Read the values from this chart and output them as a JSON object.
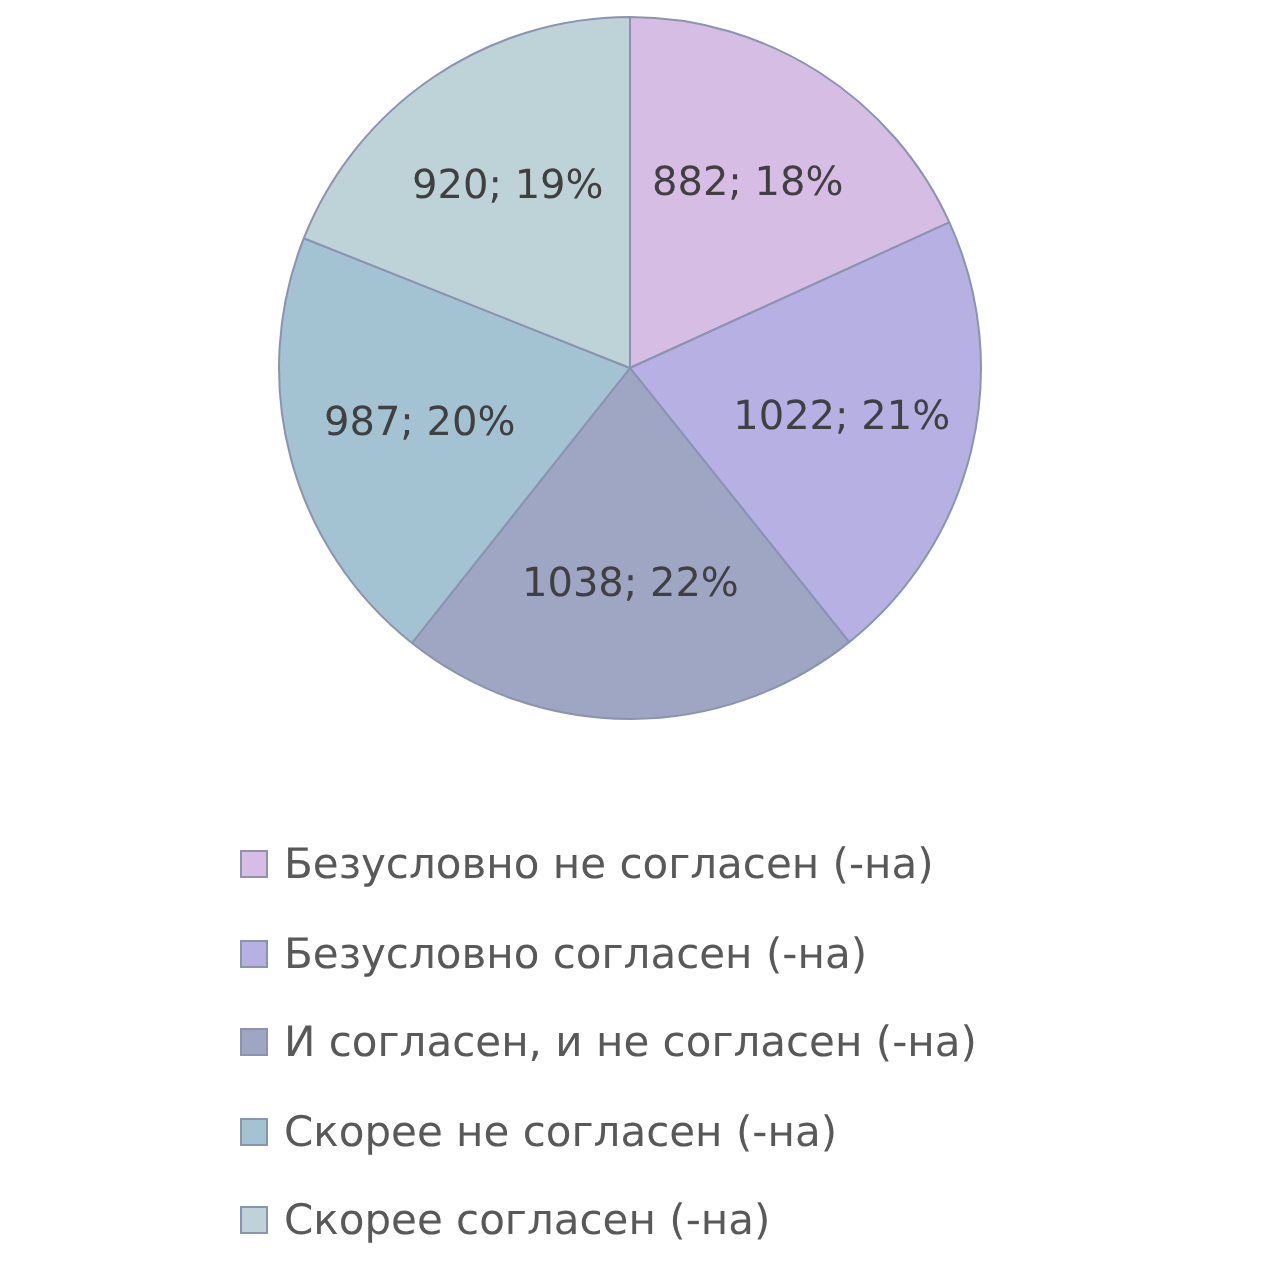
{
  "chart_data": {
    "type": "pie",
    "categories": [
      "Безусловно не согласен (-на)",
      "Безусловно согласен (-на)",
      "И согласен, и не согласен (-на)",
      "Скорее не согласен (-на)",
      "Скорее согласен (-на)"
    ],
    "values": [
      882,
      1022,
      1038,
      987,
      920
    ],
    "value_labels": [
      "882; 18%",
      "1022; 21%",
      "1038; 22%",
      "987; 20%",
      "920; 19%"
    ],
    "colors": [
      "#d6bde3",
      "#b6b1e2",
      "#9ea6c4",
      "#a3c2d2",
      "#bdd3d8"
    ],
    "legend": "bottom"
  }
}
